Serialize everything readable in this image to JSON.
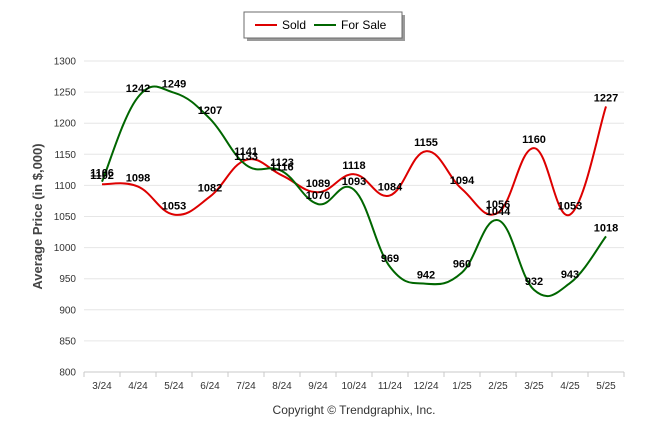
{
  "chart_data": {
    "type": "line",
    "categories": [
      "3/24",
      "4/24",
      "5/24",
      "6/24",
      "7/24",
      "8/24",
      "9/24",
      "10/24",
      "11/24",
      "12/24",
      "1/25",
      "2/25",
      "3/25",
      "4/25",
      "5/25"
    ],
    "series": [
      {
        "name": "Sold",
        "color": "#dd0000",
        "values": [
          1102,
          1098,
          1053,
          1082,
          1141,
          1116,
          1089,
          1118,
          1084,
          1155,
          1094,
          1056,
          1160,
          1053,
          1227
        ]
      },
      {
        "name": "For Sale",
        "color": "#006600",
        "values": [
          1106,
          1242,
          1249,
          1207,
          1133,
          1123,
          1070,
          1093,
          969,
          942,
          960,
          1044,
          932,
          943,
          1018
        ]
      }
    ],
    "ylabel": "Average Price (in $,000)",
    "xlabel": "",
    "ylim": [
      800,
      1300
    ],
    "yticks": [
      800,
      850,
      900,
      950,
      1000,
      1050,
      1100,
      1150,
      1200,
      1250,
      1300
    ],
    "grid": "horizontal",
    "legend_position": "top-center",
    "credit": "Copyright © Trendgraphix, Inc."
  }
}
